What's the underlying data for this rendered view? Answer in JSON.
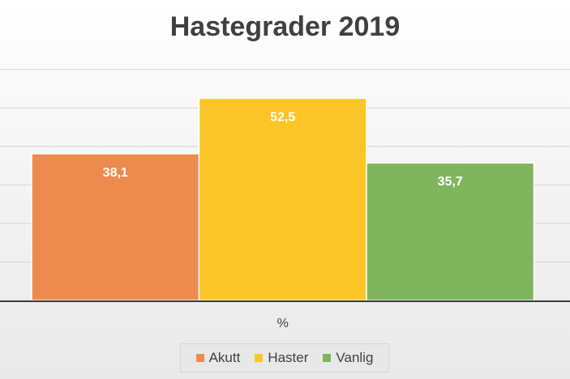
{
  "chart_data": {
    "type": "bar",
    "title": "Hastegrader 2019",
    "categories": [
      "%"
    ],
    "series": [
      {
        "name": "Akutt",
        "values": [
          38.1
        ],
        "label": "38,1",
        "color": "#ED8B4E"
      },
      {
        "name": "Haster",
        "values": [
          52.5
        ],
        "label": "52,5",
        "color": "#FBC527"
      },
      {
        "name": "Vanlig",
        "values": [
          35.7
        ],
        "label": "35,7",
        "color": "#7EB55D"
      }
    ],
    "xlabel": "",
    "ylabel": "",
    "ylim": [
      0,
      70
    ],
    "grid": true,
    "legend": "bottom"
  }
}
